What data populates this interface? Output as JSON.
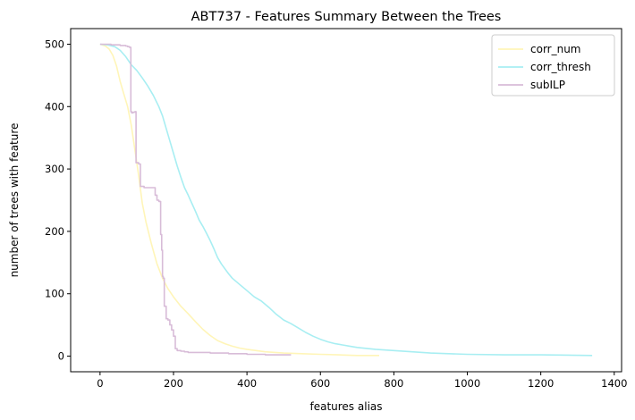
{
  "chart_data": {
    "type": "line",
    "title": "ABT737 - Features Summary Between the Trees",
    "xlabel": "features alias",
    "ylabel": "number of trees with feature",
    "xlim": [
      -80,
      1420
    ],
    "ylim": [
      -25,
      525
    ],
    "x_ticks": [
      0,
      200,
      400,
      600,
      800,
      1000,
      1200,
      1400
    ],
    "y_ticks": [
      0,
      100,
      200,
      300,
      400,
      500
    ],
    "legend_position": "top-right",
    "grid": false,
    "series": [
      {
        "name": "corr_num",
        "color": "#fff5b8",
        "step": false,
        "x": [
          0,
          15,
          25,
          35,
          45,
          55,
          65,
          75,
          85,
          95,
          105,
          115,
          125,
          140,
          155,
          170,
          185,
          200,
          220,
          240,
          260,
          280,
          300,
          320,
          340,
          360,
          380,
          400,
          450,
          500,
          550,
          600,
          650,
          700,
          760
        ],
        "y": [
          500,
          497,
          492,
          482,
          465,
          440,
          420,
          400,
          370,
          330,
          290,
          245,
          215,
          180,
          148,
          125,
          108,
          95,
          80,
          68,
          55,
          43,
          33,
          25,
          20,
          16,
          13,
          11,
          7,
          5,
          4,
          3,
          2,
          1,
          1
        ]
      },
      {
        "name": "corr_thresh",
        "color": "#a8eef2",
        "step": false,
        "x": [
          0,
          20,
          40,
          55,
          70,
          85,
          100,
          115,
          130,
          145,
          160,
          170,
          180,
          190,
          200,
          210,
          220,
          230,
          240,
          250,
          260,
          270,
          280,
          290,
          300,
          310,
          320,
          330,
          340,
          350,
          360,
          370,
          380,
          400,
          420,
          440,
          460,
          480,
          500,
          520,
          540,
          560,
          580,
          600,
          620,
          640,
          660,
          680,
          700,
          750,
          800,
          850,
          900,
          950,
          1000,
          1100,
          1200,
          1340
        ],
        "y": [
          500,
          499,
          496,
          490,
          480,
          467,
          458,
          446,
          433,
          418,
          400,
          385,
          365,
          345,
          325,
          305,
          287,
          270,
          258,
          245,
          232,
          218,
          208,
          197,
          185,
          172,
          158,
          148,
          140,
          132,
          125,
          120,
          115,
          105,
          95,
          88,
          78,
          67,
          58,
          52,
          45,
          38,
          32,
          27,
          23,
          20,
          18,
          16,
          14,
          11,
          9,
          7,
          5,
          4,
          3,
          2,
          2,
          1
        ]
      },
      {
        "name": "subILP",
        "color": "#d8bcd8",
        "step": true,
        "x": [
          0,
          10,
          30,
          40,
          55,
          70,
          75,
          80,
          84,
          86,
          90,
          95,
          98,
          102,
          105,
          110,
          120,
          130,
          140,
          150,
          155,
          160,
          165,
          168,
          170,
          172,
          175,
          180,
          185,
          190,
          195,
          200,
          205,
          210,
          220,
          230,
          240,
          260,
          300,
          350,
          400,
          450,
          520
        ],
        "y": [
          500,
          500,
          499,
          499,
          498,
          497,
          496,
          495,
          392,
          390,
          391,
          392,
          310,
          310,
          308,
          272,
          270,
          270,
          270,
          258,
          250,
          248,
          195,
          170,
          128,
          125,
          80,
          60,
          58,
          50,
          42,
          32,
          12,
          9,
          8,
          7,
          6,
          6,
          5,
          4,
          3,
          2,
          2
        ]
      }
    ]
  }
}
